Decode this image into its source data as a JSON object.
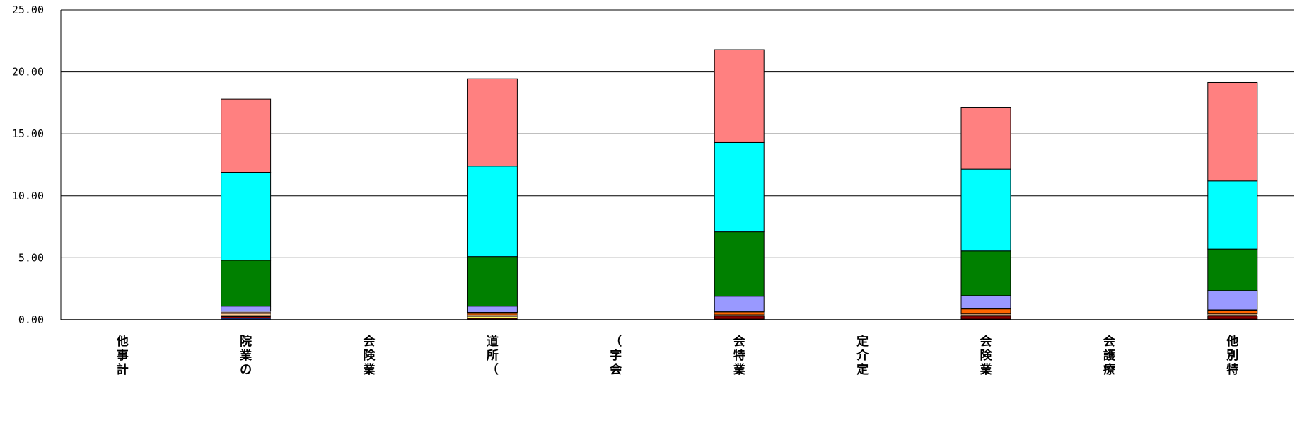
{
  "chart_data": {
    "type": "bar",
    "stacked": true,
    "title": "",
    "xlabel": "",
    "ylabel": "",
    "ylim": [
      0,
      25
    ],
    "y_ticks": [
      "0.00",
      "5.00",
      "10.00",
      "15.00",
      "20.00",
      "25.00"
    ],
    "grid": true,
    "legend": "none",
    "categories": [
      [
        "他",
        "事",
        "計"
      ],
      [
        "院",
        "業",
        "の"
      ],
      [
        "会",
        "険",
        "業"
      ],
      [
        "道",
        "所",
        "（"
      ],
      [
        "（",
        "字",
        "会"
      ],
      [
        "会",
        "特",
        "業"
      ],
      [
        "定",
        "介",
        "定"
      ],
      [
        "会",
        "険",
        "業"
      ],
      [
        "会",
        "護",
        "療"
      ],
      [
        "他",
        "別",
        "特"
      ]
    ],
    "series": [
      {
        "color": "#0B2E7A",
        "values": [
          0,
          0.15,
          0,
          0.05,
          0,
          0.05,
          0,
          0.05,
          0,
          0.05
        ]
      },
      {
        "color": "#8B0000",
        "values": [
          0,
          0.1,
          0,
          0.05,
          0,
          0.25,
          0,
          0.25,
          0,
          0.25
        ]
      },
      {
        "color": "#000000",
        "values": [
          0,
          0.05,
          0,
          0.05,
          0,
          0.05,
          0,
          0.05,
          0,
          0.05
        ]
      },
      {
        "color": "#FFFF66",
        "values": [
          0,
          0.05,
          0,
          0.1,
          0,
          0.02,
          0,
          0.02,
          0,
          0.02
        ]
      },
      {
        "color": "#FFCC99",
        "values": [
          0,
          0.15,
          0,
          0.15,
          0,
          0.05,
          0,
          0.1,
          0,
          0.1
        ]
      },
      {
        "color": "#FF6600",
        "values": [
          0,
          0.1,
          0,
          0.1,
          0,
          0.2,
          0,
          0.4,
          0,
          0.3
        ]
      },
      {
        "color": "#CCCCFF",
        "values": [
          0,
          0.1,
          0,
          0.1,
          0,
          0.03,
          0,
          0.03,
          0,
          0.03
        ]
      },
      {
        "color": "#9999FF",
        "values": [
          0,
          0.4,
          0,
          0.5,
          0,
          1.25,
          0,
          1.05,
          0,
          1.55
        ]
      },
      {
        "color": "#008000",
        "values": [
          0,
          3.7,
          0,
          4.0,
          0,
          5.2,
          0,
          3.6,
          0,
          3.35
        ]
      },
      {
        "color": "#00FFFF",
        "values": [
          0,
          7.1,
          0,
          7.3,
          0,
          7.2,
          0,
          6.6,
          0,
          5.5
        ]
      },
      {
        "color": "#FF8080",
        "values": [
          0,
          5.9,
          0,
          7.05,
          0,
          7.5,
          0,
          5.0,
          0,
          7.95
        ]
      }
    ]
  }
}
